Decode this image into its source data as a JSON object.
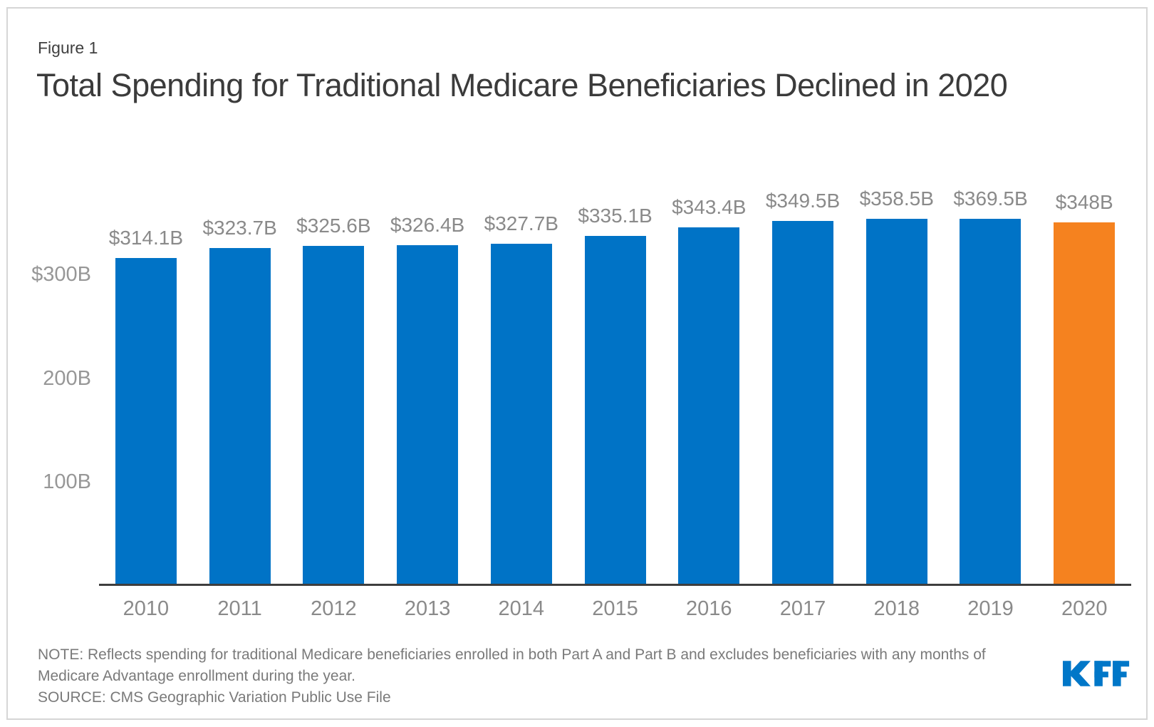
{
  "figure_label": "Figure 1",
  "title": "Total Spending for Traditional Medicare Beneficiaries Declined in 2020",
  "note_text": "NOTE: Reflects spending for traditional Medicare beneficiaries enrolled in both Part A and Part B and excludes beneficiaries with any months of Medicare Advantage enrollment during the year.",
  "source_text": "SOURCE: CMS Geographic Variation Public Use File",
  "logo_text": "KFF",
  "colors": {
    "bar_blue": "#0073C6",
    "bar_orange": "#F5821F",
    "axis_line": "#3E3E3E",
    "chart_text_gray": "#8A8A8A",
    "tick_text_gray": "#979797",
    "title_dark": "#3B3B3B",
    "note_gray": "#7A7A7A",
    "logo_blue": "#0077C8",
    "frame_border": "#D6D6D6"
  },
  "chart_data": {
    "type": "bar",
    "title": "Total Spending for Traditional Medicare Beneficiaries Declined in 2020",
    "categories": [
      "2010",
      "2011",
      "2012",
      "2013",
      "2014",
      "2015",
      "2016",
      "2017",
      "2018",
      "2019",
      "2020"
    ],
    "values": [
      314.1,
      323.7,
      325.6,
      326.4,
      327.7,
      335.1,
      343.4,
      349.5,
      358.5,
      369.5,
      348
    ],
    "value_labels": [
      "$314.1B",
      "$323.7B",
      "$325.6B",
      "$326.4B",
      "$327.7B",
      "$335.1B",
      "$343.4B",
      "$349.5B",
      "$358.5B",
      "$369.5B",
      "$348B"
    ],
    "xlabel": "",
    "ylabel": "",
    "ylim": [
      0,
      400
    ],
    "y_ticks": [
      {
        "label": "$300B",
        "value": 300
      },
      {
        "label": "200B",
        "value": 200
      },
      {
        "label": "100B",
        "value": 100
      }
    ],
    "gridlines": false,
    "legend": false,
    "series_color": "#0073C6",
    "highlight_index": 10,
    "highlight_color": "#F5821F"
  }
}
